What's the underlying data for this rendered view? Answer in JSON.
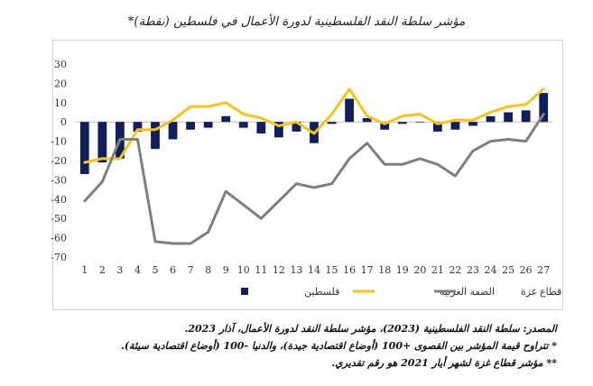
{
  "chart_data": {
    "type": "bar+line",
    "title": "مؤشر سلطة النقد الفلسطينية لدورة الأعمال في فلسطين (نقطة)*",
    "categories": [
      "1",
      "2",
      "3",
      "4",
      "5",
      "6",
      "7",
      "8",
      "9",
      "10",
      "11",
      "12",
      "13",
      "14",
      "15",
      "16",
      "17",
      "18",
      "19",
      "20",
      "21",
      "22",
      "23",
      "24",
      "25",
      "26",
      "27"
    ],
    "ylim": [
      -70,
      30
    ],
    "yticks": [
      30,
      20,
      10,
      0,
      -10,
      -20,
      -30,
      -40,
      -50,
      -60,
      -70
    ],
    "grid": false,
    "legend_position": "bottom",
    "series": [
      {
        "name": "فلسطين",
        "type": "bar",
        "color": "#0f1f5c",
        "values": [
          -27,
          -21,
          -19,
          -5,
          -14,
          -9,
          -4,
          -3,
          3,
          -3,
          -6,
          -8,
          -5,
          -11,
          -1,
          12,
          2,
          -4,
          -1,
          0,
          -5,
          -4,
          -2,
          3,
          5,
          6,
          15
        ]
      },
      {
        "name": "الضفة الغربية",
        "type": "line",
        "color": "#f5c518",
        "values": [
          -21,
          -19,
          -19,
          -4,
          -4,
          1,
          8,
          8,
          10,
          4,
          2,
          -2,
          0,
          -6,
          4,
          17,
          3,
          -1,
          3,
          4,
          -1,
          1,
          1,
          5,
          8,
          9,
          17
        ]
      },
      {
        "name": "قطاع غزة",
        "type": "line",
        "color": "#7f7f7f",
        "values": [
          -41,
          -31,
          -9,
          -9,
          -62,
          -63,
          -63,
          -57,
          -36,
          -43,
          -50,
          -41,
          -32,
          -34,
          -32,
          -19,
          -11,
          -22,
          -22,
          -19,
          -22,
          -28,
          -15,
          -10,
          -9,
          -10,
          4
        ]
      }
    ]
  },
  "footnotes": {
    "source": "المصدر: سلطة النقد الفلسطينية (2023)، مؤشر سلطة النقد لدورة الأعمال، آذار 2023.",
    "note1": "* تتراوح قيمة المؤشر بين القصوى +100 (أوضاع اقتصادية جيدة)، والدنيا -100 (أوضاع اقتصادية سيئة).",
    "note2": "** مؤشر قطاع غزة لشهر أيار 2021 هو رقم تقديري."
  }
}
